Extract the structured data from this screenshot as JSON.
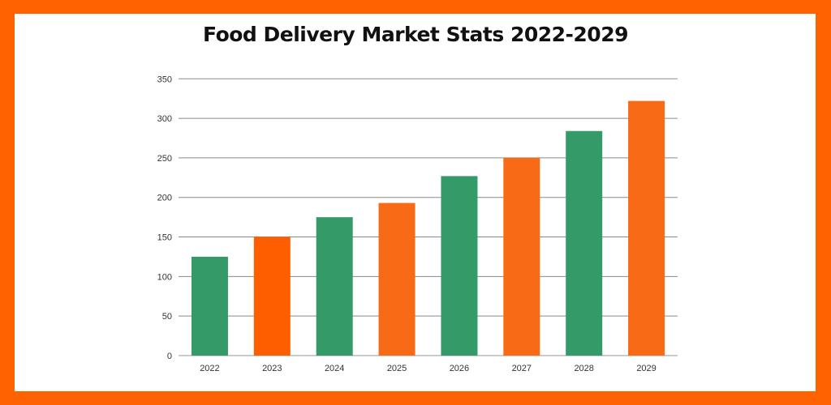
{
  "colors": {
    "border": "#ff6200",
    "green": "#339a68",
    "orange": "#f96a17",
    "orange_dark": "#ff5e00"
  },
  "chart_data": {
    "type": "bar",
    "title": "Food Delivery Market Stats 2022-2029",
    "categories": [
      "2022",
      "2023",
      "2024",
      "2025",
      "2026",
      "2027",
      "2028",
      "2029"
    ],
    "values": [
      125,
      150,
      175,
      193,
      227,
      250,
      284,
      322
    ],
    "bar_colors": [
      "#339a68",
      "#ff5e00",
      "#339a68",
      "#f96a17",
      "#339a68",
      "#f96a17",
      "#339a68",
      "#f96a17"
    ],
    "xlabel": "",
    "ylabel": "",
    "ylim": [
      0,
      350
    ],
    "yticks": [
      "0",
      "50",
      "100",
      "150",
      "200",
      "250",
      "300",
      "350"
    ],
    "grid": true,
    "legend": "none"
  }
}
